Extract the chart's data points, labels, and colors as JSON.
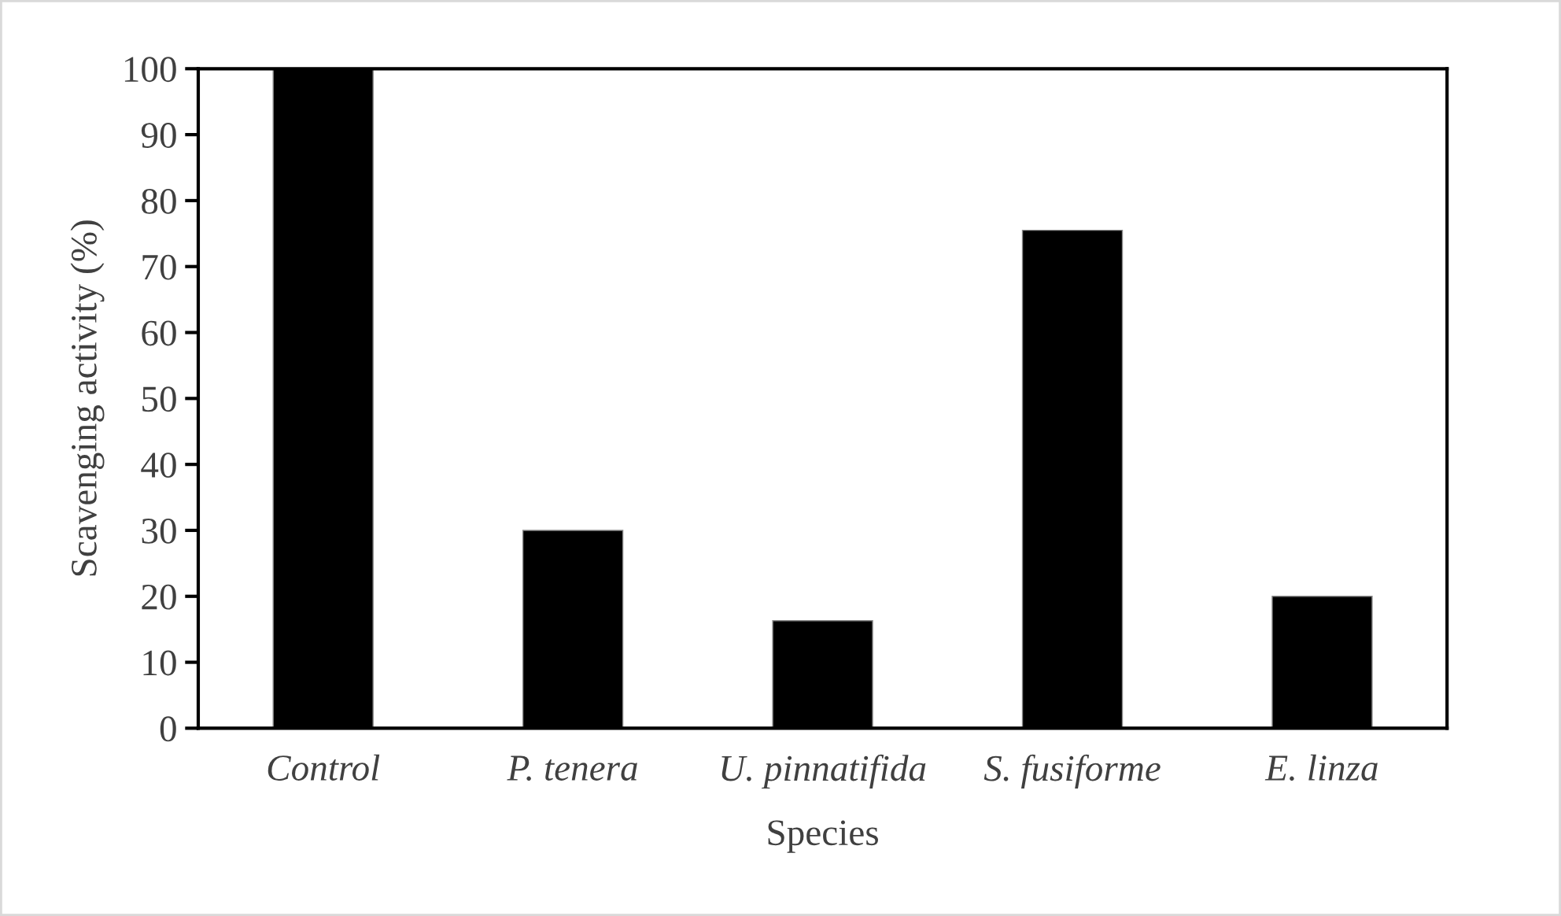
{
  "chart_data": {
    "type": "bar",
    "xlabel": "Species",
    "ylabel": "Scavenging activity (%)",
    "categories": [
      "Control",
      "P. tenera",
      "U. pinnatifida",
      "S. fusiforme",
      "E. linza"
    ],
    "values": [
      100,
      30,
      16.3,
      75.5,
      20
    ],
    "color": "#000000",
    "ylim": [
      0,
      100
    ],
    "yticks": [
      0,
      10,
      20,
      30,
      40,
      50,
      60,
      70,
      80,
      90,
      100
    ],
    "grid": false,
    "legend": false
  }
}
